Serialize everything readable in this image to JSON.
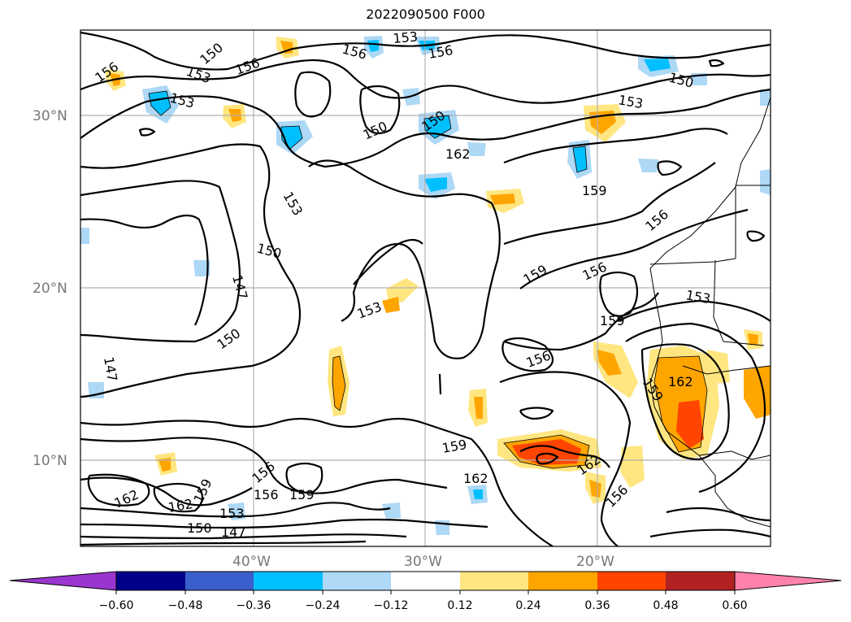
{
  "title": "2022090500 F000",
  "map": {
    "lat_ticks": [
      "30°N",
      "20°N",
      "10°N"
    ],
    "lon_ticks": [
      "40°W",
      "30°W",
      "20°W"
    ],
    "contour_labels": [
      {
        "text": "153"
      },
      {
        "text": "156"
      },
      {
        "text": "150"
      },
      {
        "text": "153"
      },
      {
        "text": "156"
      },
      {
        "text": "156"
      },
      {
        "text": "150"
      },
      {
        "text": "153"
      },
      {
        "text": "156"
      },
      {
        "text": "150"
      },
      {
        "text": "153"
      },
      {
        "text": "150"
      },
      {
        "text": "162"
      },
      {
        "text": "153"
      },
      {
        "text": "159"
      },
      {
        "text": "150"
      },
      {
        "text": "147"
      },
      {
        "text": "156"
      },
      {
        "text": "159"
      },
      {
        "text": "153"
      },
      {
        "text": "150"
      },
      {
        "text": "153"
      },
      {
        "text": "156"
      },
      {
        "text": "159"
      },
      {
        "text": "147"
      },
      {
        "text": "156"
      },
      {
        "text": "162"
      },
      {
        "text": "159"
      },
      {
        "text": "159"
      },
      {
        "text": "162"
      },
      {
        "text": "162"
      },
      {
        "text": "162"
      },
      {
        "text": "159"
      },
      {
        "text": "156"
      },
      {
        "text": "156"
      },
      {
        "text": "159"
      },
      {
        "text": "153"
      },
      {
        "text": "150"
      },
      {
        "text": "147"
      },
      {
        "text": "156"
      }
    ]
  },
  "colorbar": {
    "ticks": [
      "−0.60",
      "−0.48",
      "−0.36",
      "−0.24",
      "−0.12",
      "0.12",
      "0.24",
      "0.36",
      "0.48",
      "0.60"
    ],
    "colors": [
      "#9a35cf",
      "#00008b",
      "#3a5fcd",
      "#00bfff",
      "#add8f6",
      "#ffffff",
      "#ffe680",
      "#ffa500",
      "#ff4500",
      "#b22222",
      "#ff82ab"
    ]
  }
}
